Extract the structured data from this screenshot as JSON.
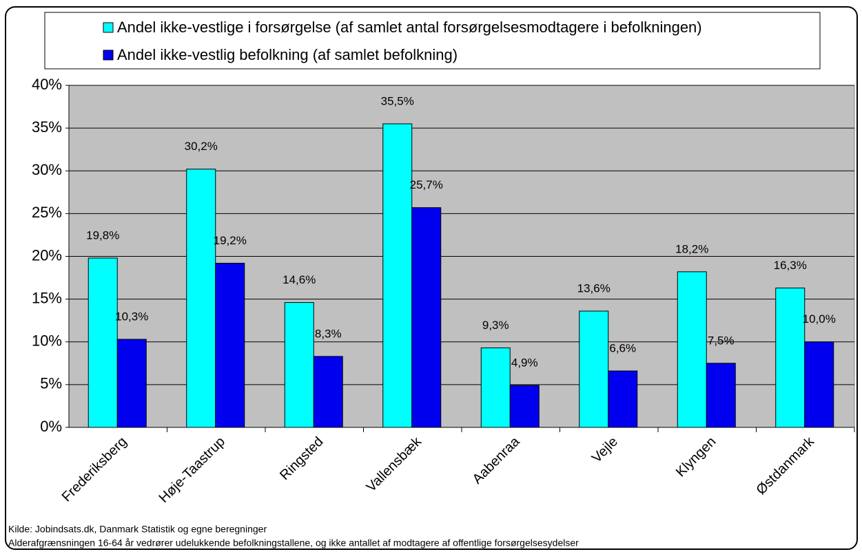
{
  "chart_data": {
    "type": "bar",
    "categories": [
      "Frederiksberg",
      "Høje-Taastrup",
      "Ringsted",
      "Vallensbæk",
      "Aabenraa",
      "Vejle",
      "Klyngen",
      "Østdanmark"
    ],
    "series": [
      {
        "name": "Andel ikke-vestlige i forsørgelse (af samlet antal forsørgelsesmodtagere i befolkningen)",
        "color": "#00ffff",
        "values": [
          19.8,
          30.2,
          14.6,
          35.5,
          9.3,
          13.6,
          18.2,
          16.3
        ],
        "value_labels": [
          "19,8%",
          "30,2%",
          "14,6%",
          "35,5%",
          "9,3%",
          "13,6%",
          "18,2%",
          "16,3%"
        ]
      },
      {
        "name": "Andel ikke-vestlig befolkning (af samlet befolkning)",
        "color": "#0000ee",
        "values": [
          10.3,
          19.2,
          8.3,
          25.7,
          4.9,
          6.6,
          7.5,
          10.0
        ],
        "value_labels": [
          "10,3%",
          "19,2%",
          "8,3%",
          "25,7%",
          "4,9%",
          "6,6%",
          "7,5%",
          "10,0%"
        ]
      }
    ],
    "ylim": [
      0,
      40
    ],
    "yticks": [
      {
        "value": 0,
        "label": "0%"
      },
      {
        "value": 5,
        "label": "5%"
      },
      {
        "value": 10,
        "label": "10%"
      },
      {
        "value": 15,
        "label": "15%"
      },
      {
        "value": 20,
        "label": "20%"
      },
      {
        "value": 25,
        "label": "25%"
      },
      {
        "value": 30,
        "label": "30%"
      },
      {
        "value": 35,
        "label": "35%"
      },
      {
        "value": 40,
        "label": "40%"
      }
    ],
    "grid": true,
    "notes": [
      "Kilde: Jobindsats.dk, Danmark Statistik og egne beregninger",
      "Alderafgrænsningen 16-64 år vedrører udelukkende befolkningstallene, og ikke antallet af modtagere af offentlige forsørgelsesydelser"
    ]
  }
}
